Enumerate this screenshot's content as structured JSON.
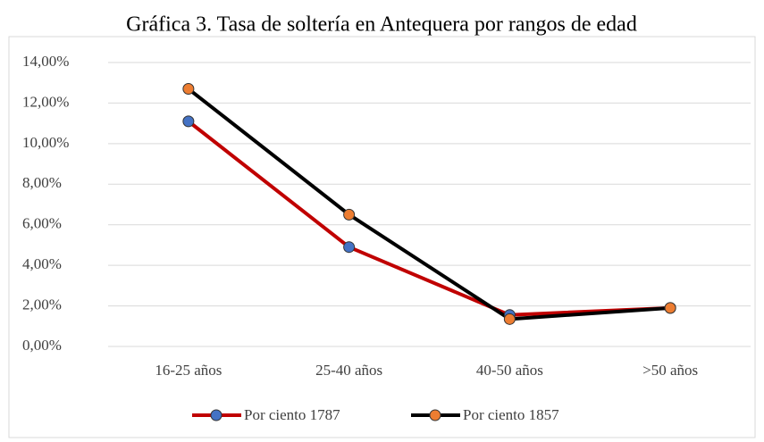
{
  "chart_data": {
    "type": "line",
    "title": "Gráfica 3. Tasa de soltería en Antequera por rangos de edad",
    "categories": [
      "16-25 años",
      "25-40 años",
      "40-50 años",
      ">50 años"
    ],
    "series": [
      {
        "name": "Por ciento 1787",
        "color": "#c00000",
        "marker_color": "#4472c4",
        "values": [
          11.1,
          4.9,
          1.55,
          1.9
        ]
      },
      {
        "name": "Por ciento 1857",
        "color": "#000000",
        "marker_color": "#ed7d31",
        "values": [
          12.7,
          6.5,
          1.35,
          1.9
        ]
      }
    ],
    "ylim": [
      0,
      14
    ],
    "yticks": [
      {
        "value": 0,
        "label": "0,00%"
      },
      {
        "value": 2,
        "label": "2,00%"
      },
      {
        "value": 4,
        "label": "4,00%"
      },
      {
        "value": 6,
        "label": "6,00%"
      },
      {
        "value": 8,
        "label": "8,00%"
      },
      {
        "value": 10,
        "label": "10,00%"
      },
      {
        "value": 12,
        "label": "12,00%"
      },
      {
        "value": 14,
        "label": "14,00%"
      }
    ],
    "grid": true,
    "legend": "bottom"
  }
}
